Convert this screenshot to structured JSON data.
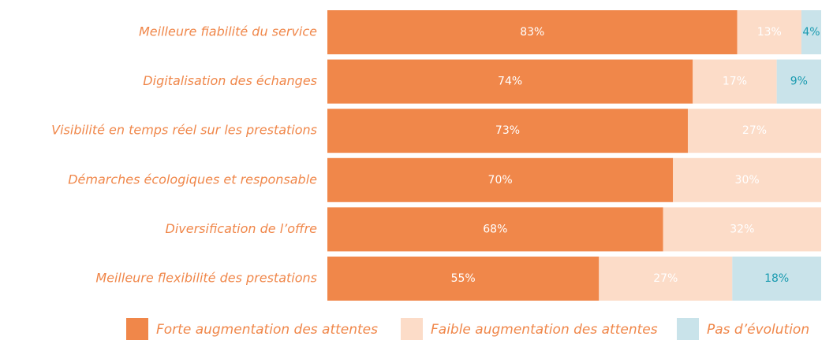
{
  "chart_data": {
    "type": "stacked_barh",
    "categories": [
      "Meilleure fiabilité du service",
      "Digitalisation des échanges",
      "Visibilité en temps réel sur les prestations",
      "Démarches écologiques et responsable",
      "Diversification de l’offre",
      "Meilleure flexibilité des prestations"
    ],
    "series": [
      {
        "name": "Forte augmentation des attentes",
        "color": "#f0874a",
        "label_color": "#ffffff",
        "values": [
          83,
          74,
          73,
          70,
          68,
          55
        ],
        "value_labels": [
          "83%",
          "74%",
          "73%",
          "70%",
          "68%",
          "55%"
        ]
      },
      {
        "name": "Faible augmentation des attentes",
        "color": "#fcdcc8",
        "label_color": "#ffffff",
        "values": [
          13,
          17,
          27,
          30,
          32,
          27
        ],
        "value_labels": [
          "13%",
          "17%",
          "27%",
          "30%",
          "32%",
          "27%"
        ]
      },
      {
        "name": "Pas d’évolution",
        "color": "#c9e3ea",
        "label_color": "#1a9bb0",
        "values": [
          4,
          9,
          null,
          null,
          null,
          18
        ],
        "value_labels": [
          "4%",
          "9%",
          null,
          null,
          null,
          "18%"
        ]
      }
    ]
  }
}
